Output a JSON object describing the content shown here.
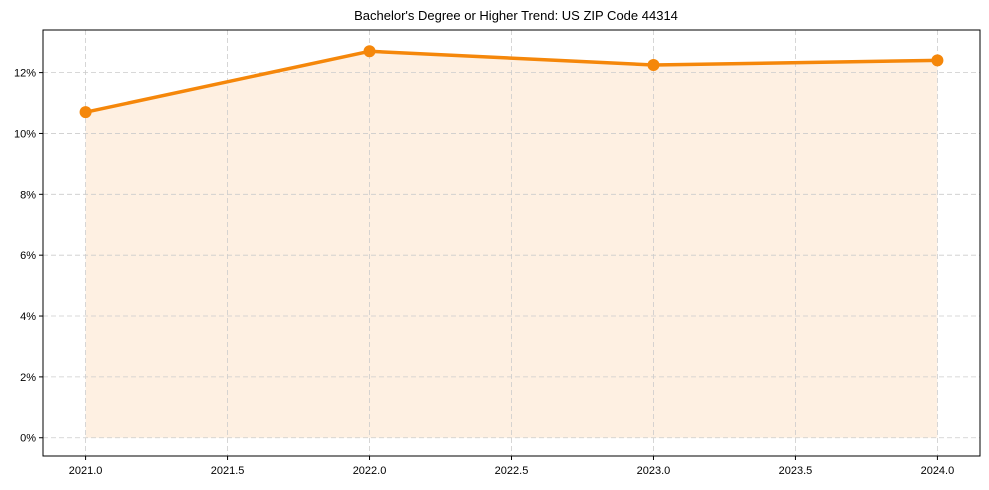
{
  "chart_data": {
    "type": "line",
    "title": "Bachelor's Degree or Higher Trend: US ZIP Code 44314",
    "xlabel": "",
    "ylabel": "",
    "x": [
      2021,
      2022,
      2023,
      2024
    ],
    "series": [
      {
        "name": "Bachelor's Degree or Higher",
        "values": [
          10.7,
          12.7,
          12.25,
          12.4
        ],
        "unit": "%",
        "color": "#F5870A",
        "fill_color": "#FEF0E2",
        "marker": "circle",
        "filled_area": true
      }
    ],
    "xticks": [
      "2021.0",
      "2021.5",
      "2022.0",
      "2022.5",
      "2023.0",
      "2023.5",
      "2024.0"
    ],
    "yticks": [
      "0%",
      "2%",
      "4%",
      "6%",
      "8%",
      "10%",
      "12%"
    ],
    "xlim": [
      2020.85,
      2024.15
    ],
    "ylim": [
      -0.6,
      13.4
    ],
    "grid": true,
    "grid_style": "dashed",
    "legend": null
  }
}
